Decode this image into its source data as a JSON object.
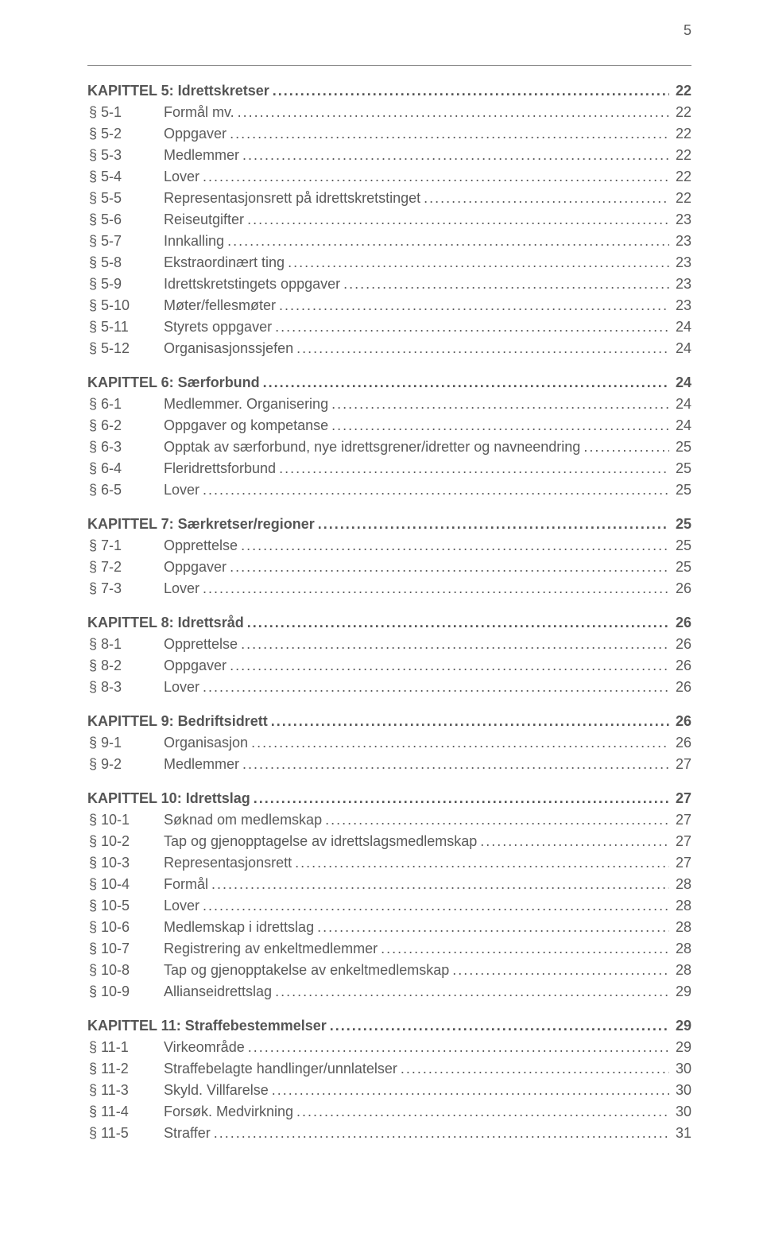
{
  "page_number": "5",
  "colors": {
    "text": "#5a5a5a",
    "background": "#ffffff",
    "rule": "#888888"
  },
  "typography": {
    "font_family": "Arial, Helvetica, sans-serif",
    "font_size_pt": 13,
    "line_height": 1.5,
    "chapter_weight": "bold"
  },
  "chapters": [
    {
      "title": "KAPITTEL 5: Idrettskretser",
      "page": "22",
      "entries": [
        {
          "sec": "§ 5-1",
          "title": "Formål mv.",
          "page": "22"
        },
        {
          "sec": "§ 5-2",
          "title": "Oppgaver",
          "page": "22"
        },
        {
          "sec": "§ 5-3",
          "title": "Medlemmer",
          "page": "22"
        },
        {
          "sec": "§ 5-4",
          "title": "Lover",
          "page": "22"
        },
        {
          "sec": "§ 5-5",
          "title": "Representasjonsrett på idrettskretstinget",
          "page": "22"
        },
        {
          "sec": "§ 5-6",
          "title": "Reiseutgifter",
          "page": "23"
        },
        {
          "sec": "§ 5-7",
          "title": "Innkalling",
          "page": "23"
        },
        {
          "sec": "§ 5-8",
          "title": "Ekstraordinært ting",
          "page": "23"
        },
        {
          "sec": "§ 5-9",
          "title": "Idrettskretstingets oppgaver",
          "page": "23"
        },
        {
          "sec": "§ 5-10",
          "title": "Møter/fellesmøter",
          "page": "23"
        },
        {
          "sec": "§ 5-11",
          "title": "Styrets oppgaver",
          "page": "24"
        },
        {
          "sec": "§ 5-12",
          "title": "Organisasjonssjefen",
          "page": "24"
        }
      ]
    },
    {
      "title": "KAPITTEL 6: Særforbund",
      "page": "24",
      "entries": [
        {
          "sec": "§ 6-1",
          "title": "Medlemmer. Organisering",
          "page": "24"
        },
        {
          "sec": "§ 6-2",
          "title": "Oppgaver og kompetanse",
          "page": "24"
        },
        {
          "sec": "§ 6-3",
          "title": "Opptak av særforbund, nye idrettsgrener/idretter og navneendring",
          "page": "25"
        },
        {
          "sec": "§ 6-4",
          "title": "Fleridrettsforbund",
          "page": "25"
        },
        {
          "sec": "§ 6-5",
          "title": "Lover",
          "page": "25"
        }
      ]
    },
    {
      "title": "KAPITTEL 7: Særkretser/regioner",
      "page": "25",
      "entries": [
        {
          "sec": "§ 7-1",
          "title": "Opprettelse",
          "page": "25"
        },
        {
          "sec": "§ 7-2",
          "title": "Oppgaver",
          "page": "25"
        },
        {
          "sec": "§ 7-3",
          "title": "Lover",
          "page": "26"
        }
      ]
    },
    {
      "title": "KAPITTEL 8: Idrettsråd",
      "page": "26",
      "entries": [
        {
          "sec": "§ 8-1",
          "title": "Opprettelse",
          "page": "26"
        },
        {
          "sec": "§ 8-2",
          "title": "Oppgaver",
          "page": "26"
        },
        {
          "sec": "§ 8-3",
          "title": "Lover",
          "page": "26"
        }
      ]
    },
    {
      "title": "KAPITTEL 9: Bedriftsidrett",
      "page": "26",
      "entries": [
        {
          "sec": "§ 9-1",
          "title": "Organisasjon",
          "page": "26"
        },
        {
          "sec": "§ 9-2",
          "title": "Medlemmer",
          "page": "27"
        }
      ]
    },
    {
      "title": "KAPITTEL 10: Idrettslag",
      "page": "27",
      "entries": [
        {
          "sec": "§ 10-1",
          "title": "Søknad om medlemskap",
          "page": "27"
        },
        {
          "sec": "§ 10-2",
          "title": "Tap og gjenopptagelse av idrettslagsmedlemskap",
          "page": "27"
        },
        {
          "sec": "§ 10-3",
          "title": "Representasjonsrett",
          "page": "27"
        },
        {
          "sec": "§ 10-4",
          "title": "Formål",
          "page": "28"
        },
        {
          "sec": "§ 10-5",
          "title": "Lover",
          "page": "28"
        },
        {
          "sec": "§ 10-6",
          "title": "Medlemskap i idrettslag",
          "page": "28"
        },
        {
          "sec": "§ 10-7",
          "title": "Registrering av enkeltmedlemmer",
          "page": "28"
        },
        {
          "sec": "§ 10-8",
          "title": "Tap og gjenopptakelse av enkeltmedlemskap",
          "page": "28"
        },
        {
          "sec": "§ 10-9",
          "title": "Allianseidrettslag",
          "page": "29"
        }
      ]
    },
    {
      "title": "KAPITTEL 11: Straffebestemmelser",
      "page": "29",
      "entries": [
        {
          "sec": "§ 11-1",
          "title": "Virkeområde",
          "page": "29"
        },
        {
          "sec": "§ 11-2",
          "title": "Straffebelagte handlinger/unnlatelser",
          "page": "30"
        },
        {
          "sec": "§ 11-3",
          "title": "Skyld. Villfarelse",
          "page": "30"
        },
        {
          "sec": "§ 11-4",
          "title": "Forsøk. Medvirkning",
          "page": "30"
        },
        {
          "sec": "§ 11-5",
          "title": "Straffer",
          "page": "31"
        }
      ]
    }
  ]
}
